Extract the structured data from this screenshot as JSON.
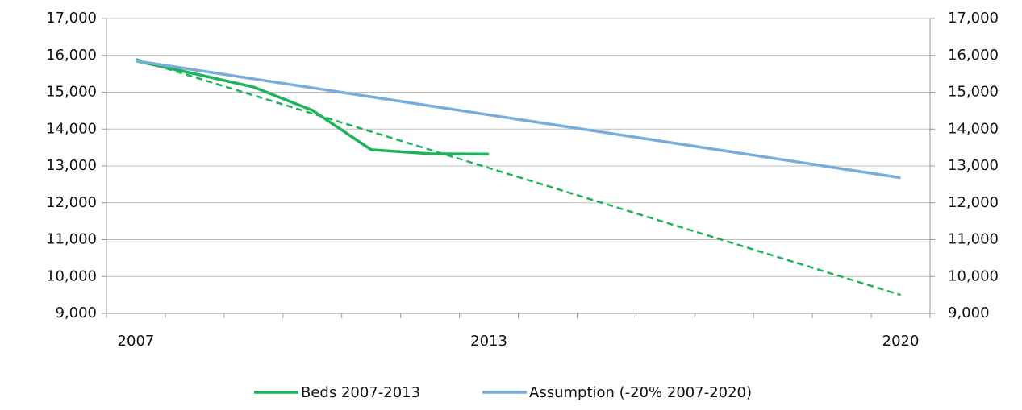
{
  "chart_data": {
    "type": "line",
    "categories": [
      "2007",
      null,
      null,
      null,
      null,
      null,
      "2013",
      null,
      null,
      null,
      null,
      null,
      null,
      "2020"
    ],
    "series": [
      {
        "name": "Beds 2007-2013",
        "color": "#1db35a",
        "values": [
          15850,
          15500,
          15140,
          14510,
          13440,
          13330,
          13320,
          null,
          null,
          null,
          null,
          null,
          null,
          null
        ]
      },
      {
        "name": "Assumption (-20% 2007-2020)",
        "color": "#79acd9",
        "values": [
          15850,
          15606,
          15362,
          15119,
          14875,
          14631,
          14387,
          14143,
          13900,
          13656,
          13412,
          13168,
          12924,
          12680
        ]
      }
    ],
    "trendline": {
      "color": "#1db35a",
      "values": [
        15900,
        15408,
        14915,
        14423,
        13931,
        13438,
        12946,
        12454,
        11962,
        11469,
        10977,
        10485,
        9992,
        9500
      ]
    },
    "ylim": [
      9000,
      17000
    ],
    "yticks": [
      {
        "value": 9000,
        "label": "9,000"
      },
      {
        "value": 10000,
        "label": "10,000"
      },
      {
        "value": 11000,
        "label": "11,000"
      },
      {
        "value": 12000,
        "label": "12,000"
      },
      {
        "value": 13000,
        "label": "13,000"
      },
      {
        "value": 14000,
        "label": "14,000"
      },
      {
        "value": 15000,
        "label": "15,000"
      },
      {
        "value": 16000,
        "label": "16,000"
      },
      {
        "value": 17000,
        "label": "17,000"
      }
    ],
    "y2lim": [
      9000,
      17000
    ],
    "y2ticks": [
      {
        "value": 9000,
        "label": "9,000"
      },
      {
        "value": 10000,
        "label": "10,000"
      },
      {
        "value": 11000,
        "label": "11,000"
      },
      {
        "value": 12000,
        "label": "12,000"
      },
      {
        "value": 13000,
        "label": "13,000"
      },
      {
        "value": 14000,
        "label": "14,000"
      },
      {
        "value": 15000,
        "label": "15,000"
      },
      {
        "value": 16000,
        "label": "16,000"
      },
      {
        "value": 17000,
        "label": "17,000"
      }
    ],
    "grid": true,
    "legend": "bottom"
  }
}
